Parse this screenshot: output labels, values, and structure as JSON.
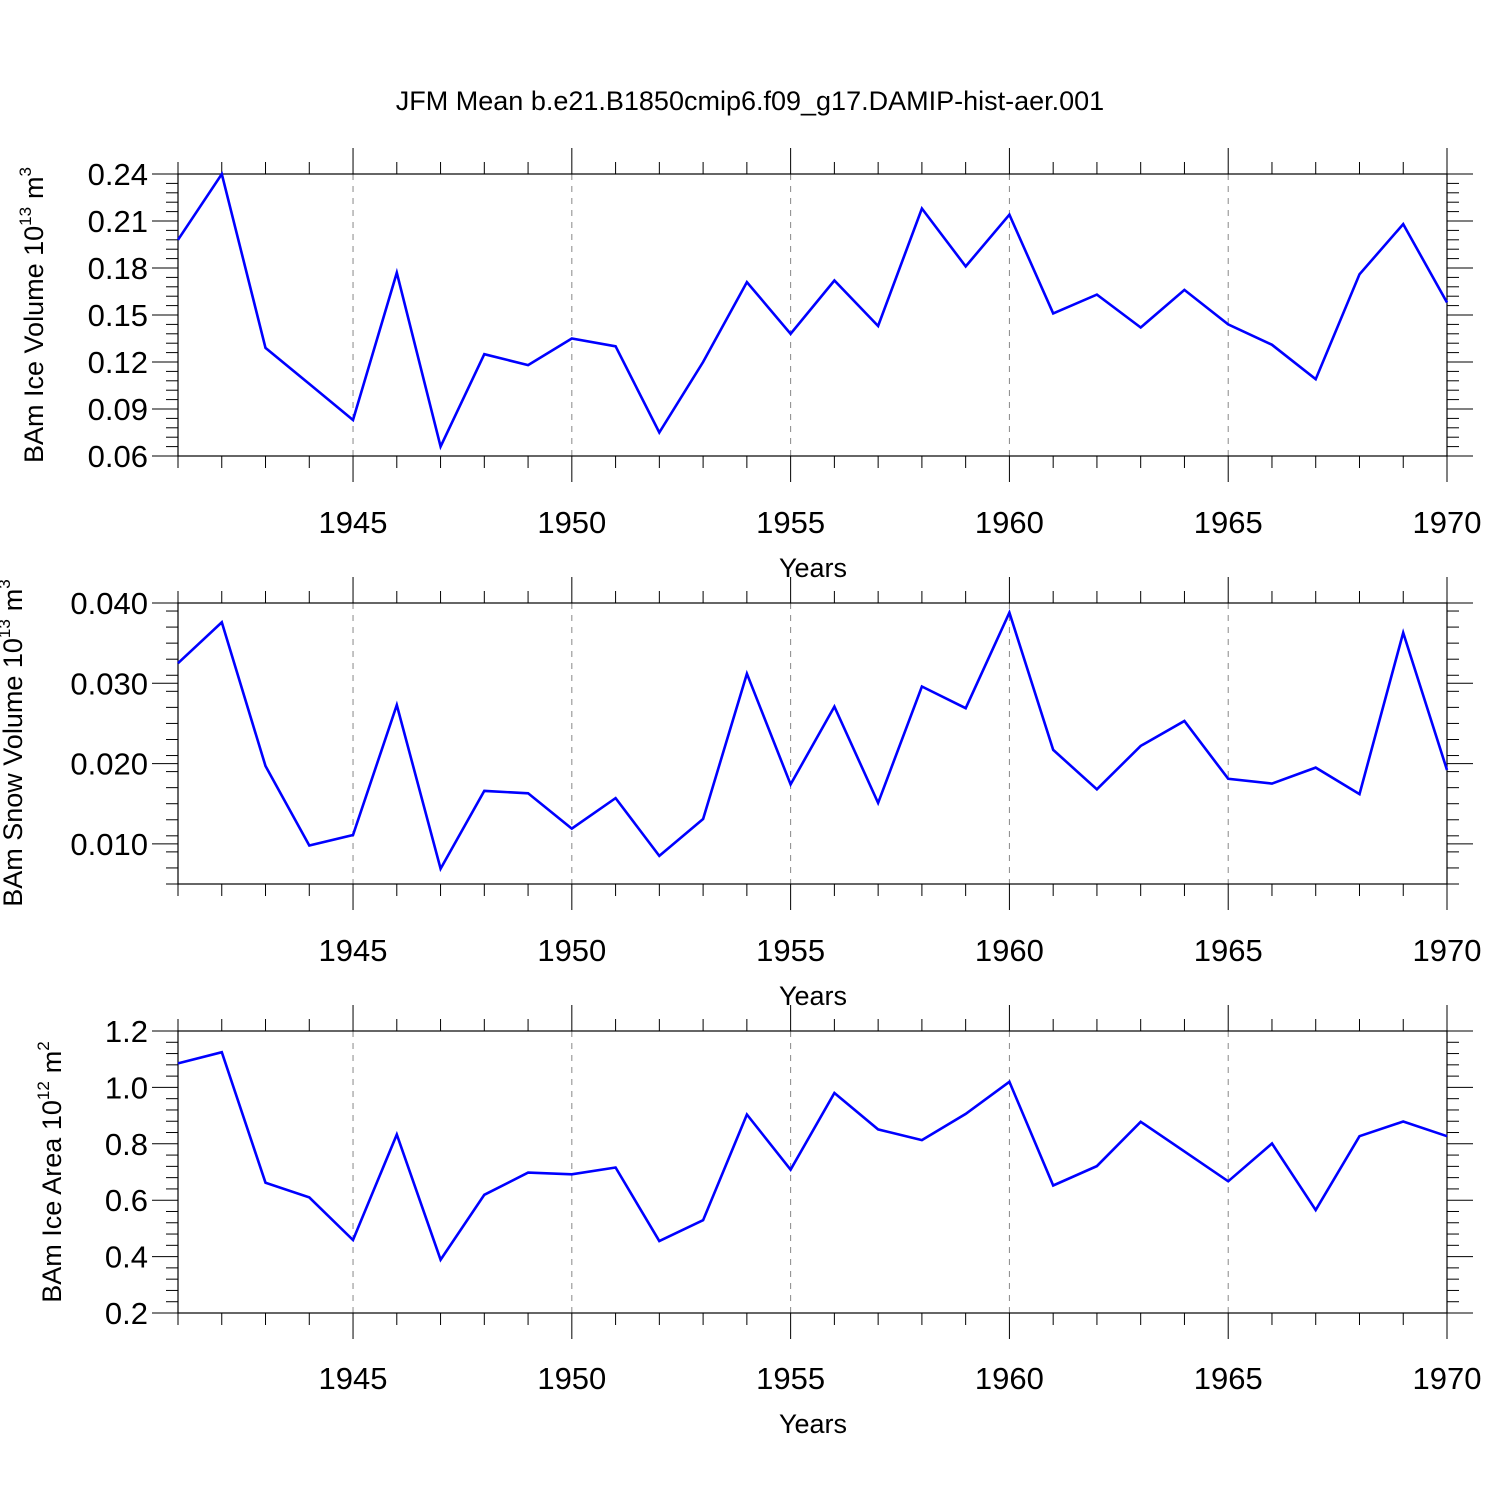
{
  "title": "JFM Mean b.e21.B1850cmip6.f09_g17.DAMIP-hist-aer.001",
  "line_color": "#0000ff",
  "chart_data": [
    {
      "type": "line",
      "name": "ice-volume",
      "ylabel": "BAm Ice Volume 10",
      "ylabel_exp": "13",
      "ylabel_unit": "m",
      "ylabel_unit_exp": "3",
      "xlabel": "Years",
      "xlim": [
        1941,
        1970
      ],
      "ylim": [
        0.06,
        0.24
      ],
      "yticks": [
        "0.06",
        "0.09",
        "0.12",
        "0.15",
        "0.18",
        "0.21",
        "0.24"
      ],
      "xticks": [
        "1945",
        "1950",
        "1955",
        "1960",
        "1965",
        "1970"
      ],
      "x": [
        1941,
        1942,
        1943,
        1944,
        1945,
        1946,
        1947,
        1948,
        1949,
        1950,
        1951,
        1952,
        1953,
        1954,
        1955,
        1956,
        1957,
        1958,
        1959,
        1960,
        1961,
        1962,
        1963,
        1964,
        1965,
        1966,
        1967,
        1968,
        1969,
        1970
      ],
      "values": [
        0.198,
        0.24,
        0.129,
        0.106,
        0.083,
        0.177,
        0.066,
        0.125,
        0.118,
        0.135,
        0.13,
        0.075,
        0.12,
        0.171,
        0.138,
        0.172,
        0.143,
        0.218,
        0.181,
        0.214,
        0.151,
        0.163,
        0.142,
        0.166,
        0.144,
        0.131,
        0.109,
        0.176,
        0.208,
        0.158
      ]
    },
    {
      "type": "line",
      "name": "snow-volume",
      "ylabel": "BAm Snow Volume 10",
      "ylabel_exp": "13",
      "ylabel_unit": "m",
      "ylabel_unit_exp": "3",
      "xlabel": "Years",
      "xlim": [
        1941,
        1970
      ],
      "ylim": [
        0.005,
        0.04
      ],
      "yticks": [
        "0.010",
        "0.020",
        "0.030",
        "0.040"
      ],
      "xticks": [
        "1945",
        "1950",
        "1955",
        "1960",
        "1965",
        "1970"
      ],
      "x": [
        1941,
        1942,
        1943,
        1944,
        1945,
        1946,
        1947,
        1948,
        1949,
        1950,
        1951,
        1952,
        1953,
        1954,
        1955,
        1956,
        1957,
        1958,
        1959,
        1960,
        1961,
        1962,
        1963,
        1964,
        1965,
        1966,
        1967,
        1968,
        1969,
        1970
      ],
      "values": [
        0.0325,
        0.0376,
        0.0197,
        0.0098,
        0.0111,
        0.0273,
        0.0069,
        0.0166,
        0.0163,
        0.0119,
        0.0157,
        0.0085,
        0.0131,
        0.0312,
        0.0174,
        0.0271,
        0.0151,
        0.0296,
        0.0269,
        0.0388,
        0.0217,
        0.0168,
        0.0222,
        0.0253,
        0.0181,
        0.0175,
        0.0195,
        0.0162,
        0.0363,
        0.0192
      ]
    },
    {
      "type": "line",
      "name": "ice-area",
      "ylabel": "BAm Ice Area 10",
      "ylabel_exp": "12",
      "ylabel_unit": "m",
      "ylabel_unit_exp": "2",
      "xlabel": "Years",
      "xlim": [
        1941,
        1970
      ],
      "ylim": [
        0.2,
        1.2
      ],
      "yticks": [
        "0.2",
        "0.4",
        "0.6",
        "0.8",
        "1.0",
        "1.2"
      ],
      "xticks": [
        "1945",
        "1950",
        "1955",
        "1960",
        "1965",
        "1970"
      ],
      "x": [
        1941,
        1942,
        1943,
        1944,
        1945,
        1946,
        1947,
        1948,
        1949,
        1950,
        1951,
        1952,
        1953,
        1954,
        1955,
        1956,
        1957,
        1958,
        1959,
        1960,
        1961,
        1962,
        1963,
        1964,
        1965,
        1966,
        1967,
        1968,
        1969,
        1970
      ],
      "values": [
        1.085,
        1.125,
        0.662,
        0.61,
        0.459,
        0.833,
        0.389,
        0.619,
        0.698,
        0.692,
        0.716,
        0.455,
        0.529,
        0.904,
        0.708,
        0.98,
        0.851,
        0.813,
        0.906,
        1.02,
        0.652,
        0.721,
        0.878,
        0.773,
        0.667,
        0.801,
        0.565,
        0.827,
        0.879,
        0.827
      ]
    }
  ]
}
